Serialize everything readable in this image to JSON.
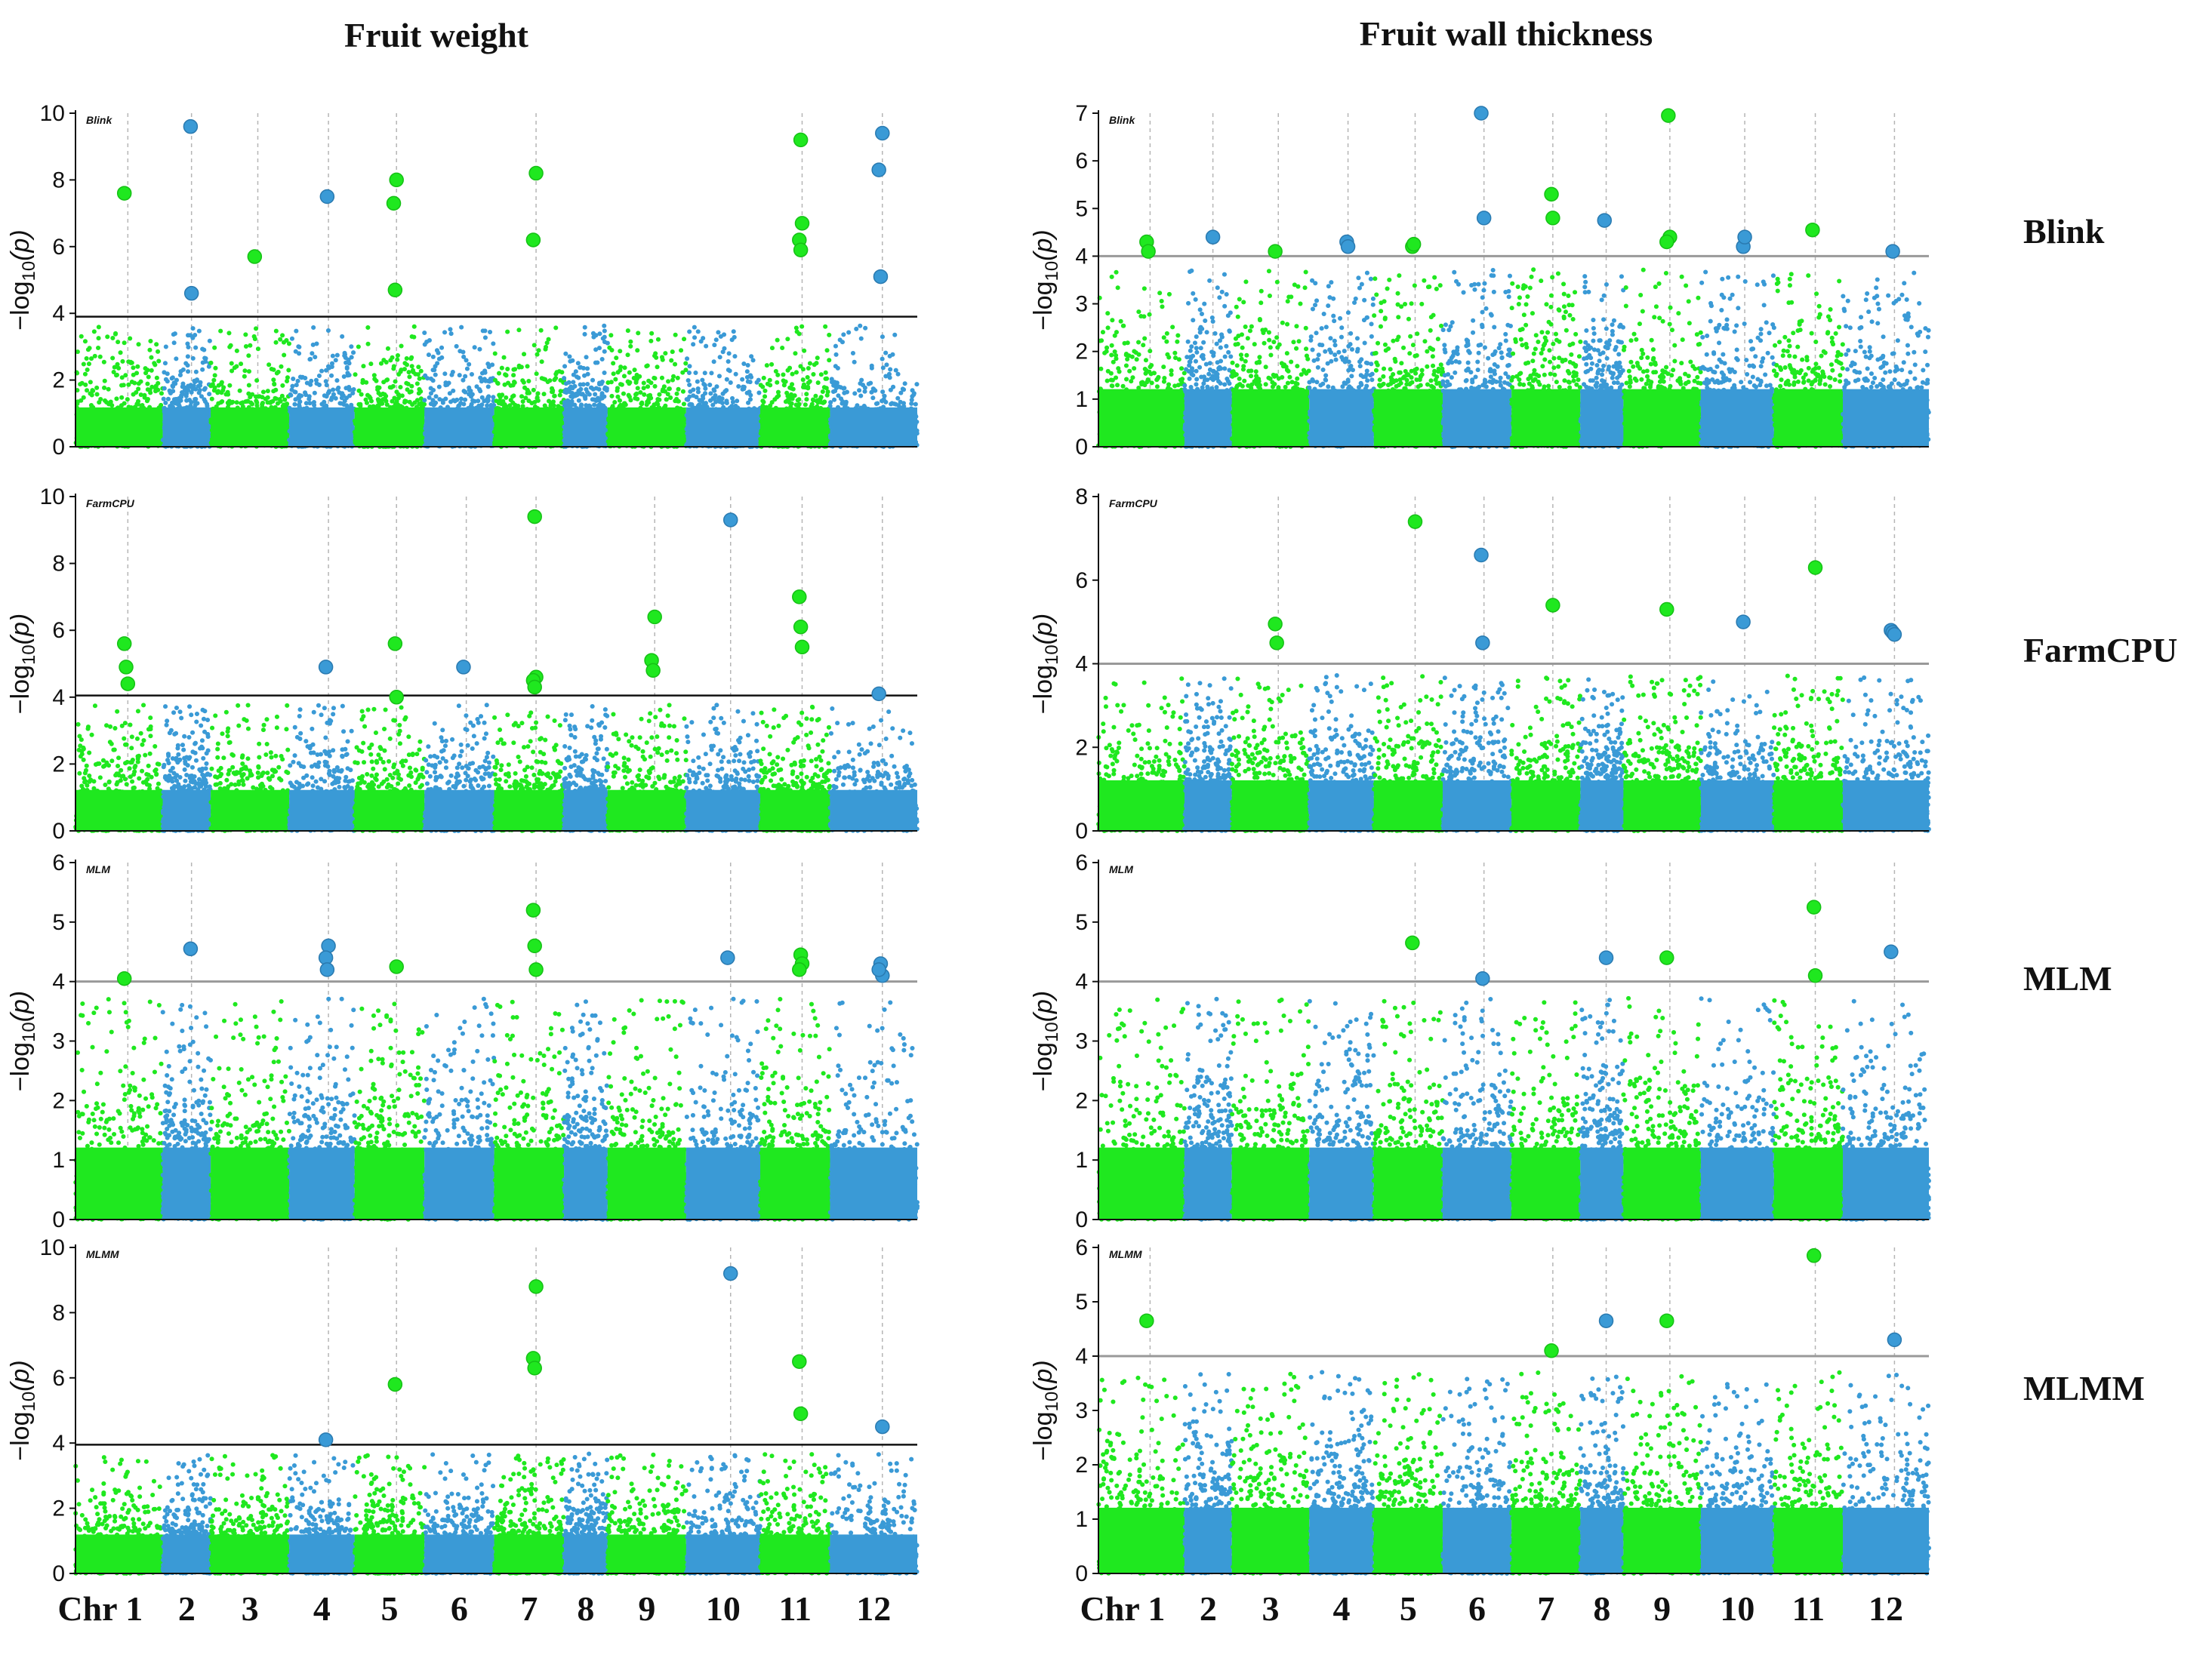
{
  "colors": {
    "green": "#1fe81f",
    "blue": "#3a9ad6",
    "threshold_dark": "#111111",
    "threshold_gray": "#999999"
  },
  "chromosomes": [
    "1",
    "2",
    "3",
    "4",
    "5",
    "6",
    "7",
    "8",
    "9",
    "10",
    "11",
    "12"
  ],
  "chr_first_prefix": "Chr ",
  "titles": {
    "left": "Fruit weight",
    "right": "Fruit wall thickness"
  },
  "row_labels": [
    "Blink",
    "FarmCPU",
    "MLM",
    "MLMM"
  ],
  "y_axis_label": "-log10(p)",
  "chart_data": [
    {
      "type": "scatter",
      "trait": "Fruit weight",
      "method": "Blink",
      "ylim": [
        0,
        10
      ],
      "yticks": [
        0,
        2,
        4,
        6,
        8,
        10
      ],
      "threshold": 3.9,
      "threshold_style": "dark",
      "signal_chr": [
        1,
        2,
        3,
        4,
        5,
        6,
        7,
        8,
        9,
        10,
        11,
        12
      ],
      "hits": [
        {
          "chr": 1,
          "y": 7.6
        },
        {
          "chr": 2,
          "y": 9.6
        },
        {
          "chr": 2,
          "y": 4.6
        },
        {
          "chr": 3,
          "y": 5.7
        },
        {
          "chr": 4,
          "y": 7.5
        },
        {
          "chr": 5,
          "y": 8.0
        },
        {
          "chr": 5,
          "y": 7.3
        },
        {
          "chr": 5,
          "y": 4.7
        },
        {
          "chr": 7,
          "y": 8.2
        },
        {
          "chr": 7,
          "y": 6.2
        },
        {
          "chr": 11,
          "y": 9.2
        },
        {
          "chr": 11,
          "y": 6.7
        },
        {
          "chr": 11,
          "y": 6.2
        },
        {
          "chr": 11,
          "y": 5.9
        },
        {
          "chr": 12,
          "y": 9.4
        },
        {
          "chr": 12,
          "y": 8.3
        },
        {
          "chr": 12,
          "y": 5.1
        }
      ],
      "xticks_shown": false
    },
    {
      "type": "scatter",
      "trait": "Fruit weight",
      "method": "FarmCPU",
      "ylim": [
        0,
        10
      ],
      "yticks": [
        0,
        2,
        4,
        6,
        8,
        10
      ],
      "threshold": 4.05,
      "threshold_style": "dark",
      "hits": [
        {
          "chr": 1,
          "y": 5.6
        },
        {
          "chr": 1,
          "y": 4.9
        },
        {
          "chr": 1,
          "y": 4.4
        },
        {
          "chr": 4,
          "y": 4.9
        },
        {
          "chr": 5,
          "y": 5.6
        },
        {
          "chr": 5,
          "y": 4.0
        },
        {
          "chr": 6,
          "y": 4.9
        },
        {
          "chr": 7,
          "y": 9.4
        },
        {
          "chr": 7,
          "y": 4.6
        },
        {
          "chr": 7,
          "y": 4.5
        },
        {
          "chr": 7,
          "y": 4.3
        },
        {
          "chr": 9,
          "y": 6.4
        },
        {
          "chr": 9,
          "y": 5.1
        },
        {
          "chr": 9,
          "y": 4.8
        },
        {
          "chr": 10,
          "y": 9.3
        },
        {
          "chr": 11,
          "y": 7.0
        },
        {
          "chr": 11,
          "y": 6.1
        },
        {
          "chr": 11,
          "y": 5.5
        },
        {
          "chr": 12,
          "y": 4.1
        }
      ],
      "xticks_shown": false
    },
    {
      "type": "scatter",
      "trait": "Fruit weight",
      "method": "MLM",
      "ylim": [
        0,
        6
      ],
      "yticks": [
        0,
        1,
        2,
        3,
        4,
        5,
        6
      ],
      "threshold": 4.0,
      "threshold_style": "gray",
      "hits": [
        {
          "chr": 1,
          "y": 4.05
        },
        {
          "chr": 2,
          "y": 4.55
        },
        {
          "chr": 4,
          "y": 4.6
        },
        {
          "chr": 4,
          "y": 4.4
        },
        {
          "chr": 4,
          "y": 4.2
        },
        {
          "chr": 5,
          "y": 4.25
        },
        {
          "chr": 7,
          "y": 5.2
        },
        {
          "chr": 7,
          "y": 4.6
        },
        {
          "chr": 7,
          "y": 4.2
        },
        {
          "chr": 10,
          "y": 4.4
        },
        {
          "chr": 11,
          "y": 4.45
        },
        {
          "chr": 11,
          "y": 4.3
        },
        {
          "chr": 11,
          "y": 4.2
        },
        {
          "chr": 12,
          "y": 4.3
        },
        {
          "chr": 12,
          "y": 4.1
        },
        {
          "chr": 12,
          "y": 4.2
        }
      ],
      "xticks_shown": false
    },
    {
      "type": "scatter",
      "trait": "Fruit weight",
      "method": "MLMM",
      "ylim": [
        0,
        10
      ],
      "yticks": [
        0,
        2,
        4,
        6,
        8,
        10
      ],
      "threshold": 3.95,
      "threshold_style": "dark",
      "hits": [
        {
          "chr": 4,
          "y": 4.1
        },
        {
          "chr": 5,
          "y": 5.8
        },
        {
          "chr": 7,
          "y": 8.8
        },
        {
          "chr": 7,
          "y": 6.6
        },
        {
          "chr": 7,
          "y": 6.3
        },
        {
          "chr": 10,
          "y": 9.2
        },
        {
          "chr": 11,
          "y": 6.5
        },
        {
          "chr": 11,
          "y": 4.9
        },
        {
          "chr": 12,
          "y": 4.5
        }
      ],
      "xticks_shown": true
    },
    {
      "type": "scatter",
      "trait": "Fruit wall thickness",
      "method": "Blink",
      "ylim": [
        0,
        7
      ],
      "yticks": [
        0,
        1,
        2,
        3,
        4,
        5,
        6,
        7
      ],
      "threshold": 4.0,
      "threshold_style": "gray",
      "hits": [
        {
          "chr": 1,
          "y": 4.3
        },
        {
          "chr": 1,
          "y": 4.1
        },
        {
          "chr": 2,
          "y": 4.4
        },
        {
          "chr": 3,
          "y": 4.1
        },
        {
          "chr": 4,
          "y": 4.3
        },
        {
          "chr": 4,
          "y": 4.2
        },
        {
          "chr": 5,
          "y": 4.2
        },
        {
          "chr": 5,
          "y": 4.25
        },
        {
          "chr": 6,
          "y": 4.8
        },
        {
          "chr": 6,
          "y": 7.0
        },
        {
          "chr": 7,
          "y": 5.3
        },
        {
          "chr": 7,
          "y": 4.8
        },
        {
          "chr": 8,
          "y": 4.75
        },
        {
          "chr": 9,
          "y": 6.95
        },
        {
          "chr": 9,
          "y": 4.4
        },
        {
          "chr": 9,
          "y": 4.3
        },
        {
          "chr": 10,
          "y": 4.2
        },
        {
          "chr": 10,
          "y": 4.4
        },
        {
          "chr": 11,
          "y": 4.55
        },
        {
          "chr": 12,
          "y": 4.1
        }
      ],
      "xticks_shown": false
    },
    {
      "type": "scatter",
      "trait": "Fruit wall thickness",
      "method": "FarmCPU",
      "ylim": [
        0,
        8
      ],
      "yticks": [
        0,
        2,
        4,
        6,
        8
      ],
      "threshold": 4.0,
      "threshold_style": "gray",
      "hits": [
        {
          "chr": 3,
          "y": 4.95
        },
        {
          "chr": 3,
          "y": 4.5
        },
        {
          "chr": 5,
          "y": 7.4
        },
        {
          "chr": 6,
          "y": 6.6
        },
        {
          "chr": 6,
          "y": 4.5
        },
        {
          "chr": 7,
          "y": 5.4
        },
        {
          "chr": 9,
          "y": 5.3
        },
        {
          "chr": 10,
          "y": 5.0
        },
        {
          "chr": 11,
          "y": 6.3
        },
        {
          "chr": 12,
          "y": 4.8
        },
        {
          "chr": 12,
          "y": 4.75
        },
        {
          "chr": 12,
          "y": 4.7
        }
      ],
      "xticks_shown": false
    },
    {
      "type": "scatter",
      "trait": "Fruit wall thickness",
      "method": "MLM",
      "ylim": [
        0,
        6
      ],
      "yticks": [
        0,
        1,
        2,
        3,
        4,
        5,
        6
      ],
      "threshold": 4.0,
      "threshold_style": "gray",
      "hits": [
        {
          "chr": 5,
          "y": 4.65
        },
        {
          "chr": 6,
          "y": 4.05
        },
        {
          "chr": 8,
          "y": 4.4
        },
        {
          "chr": 9,
          "y": 4.4
        },
        {
          "chr": 11,
          "y": 5.25
        },
        {
          "chr": 11,
          "y": 4.1
        },
        {
          "chr": 12,
          "y": 4.5
        }
      ],
      "xticks_shown": false
    },
    {
      "type": "scatter",
      "trait": "Fruit wall thickness",
      "method": "MLMM",
      "ylim": [
        0,
        6
      ],
      "yticks": [
        0,
        1,
        2,
        3,
        4,
        5,
        6
      ],
      "threshold": 4.0,
      "threshold_style": "gray",
      "hits": [
        {
          "chr": 1,
          "y": 4.65
        },
        {
          "chr": 7,
          "y": 4.1
        },
        {
          "chr": 8,
          "y": 4.65
        },
        {
          "chr": 9,
          "y": 4.65
        },
        {
          "chr": 11,
          "y": 5.85
        },
        {
          "chr": 12,
          "y": 4.3
        }
      ],
      "xticks_shown": true
    }
  ]
}
